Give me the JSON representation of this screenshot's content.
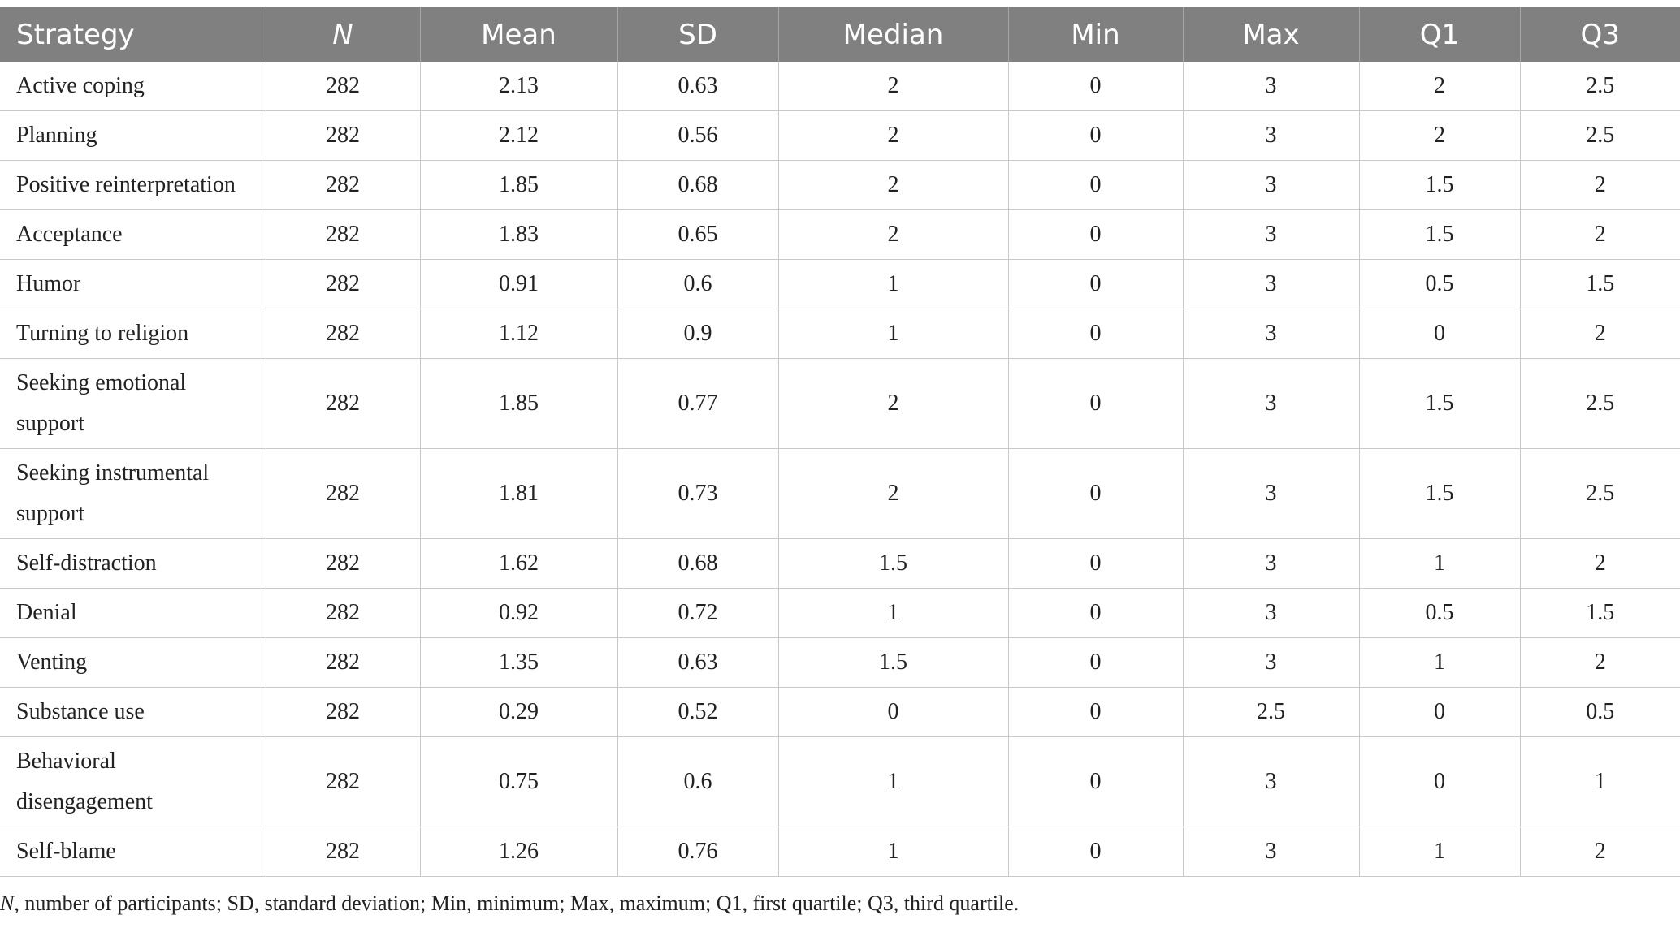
{
  "table": {
    "headers": [
      "Strategy",
      "N",
      "Mean",
      "SD",
      "Median",
      "Min",
      "Max",
      "Q1",
      "Q3"
    ],
    "rows": [
      [
        "Active coping",
        "282",
        "2.13",
        "0.63",
        "2",
        "0",
        "3",
        "2",
        "2.5"
      ],
      [
        "Planning",
        "282",
        "2.12",
        "0.56",
        "2",
        "0",
        "3",
        "2",
        "2.5"
      ],
      [
        "Positive reinterpretation",
        "282",
        "1.85",
        "0.68",
        "2",
        "0",
        "3",
        "1.5",
        "2"
      ],
      [
        "Acceptance",
        "282",
        "1.83",
        "0.65",
        "2",
        "0",
        "3",
        "1.5",
        "2"
      ],
      [
        "Humor",
        "282",
        "0.91",
        "0.6",
        "1",
        "0",
        "3",
        "0.5",
        "1.5"
      ],
      [
        "Turning to religion",
        "282",
        "1.12",
        "0.9",
        "1",
        "0",
        "3",
        "0",
        "2"
      ],
      [
        "Seeking emotional support",
        "282",
        "1.85",
        "0.77",
        "2",
        "0",
        "3",
        "1.5",
        "2.5"
      ],
      [
        "Seeking instrumental support",
        "282",
        "1.81",
        "0.73",
        "2",
        "0",
        "3",
        "1.5",
        "2.5"
      ],
      [
        "Self-distraction",
        "282",
        "1.62",
        "0.68",
        "1.5",
        "0",
        "3",
        "1",
        "2"
      ],
      [
        "Denial",
        "282",
        "0.92",
        "0.72",
        "1",
        "0",
        "3",
        "0.5",
        "1.5"
      ],
      [
        "Venting",
        "282",
        "1.35",
        "0.63",
        "1.5",
        "0",
        "3",
        "1",
        "2"
      ],
      [
        "Substance use",
        "282",
        "0.29",
        "0.52",
        "0",
        "0",
        "2.5",
        "0",
        "0.5"
      ],
      [
        "Behavioral disengagement",
        "282",
        "0.75",
        "0.6",
        "1",
        "0",
        "3",
        "0",
        "1"
      ],
      [
        "Self-blame",
        "282",
        "1.26",
        "0.76",
        "1",
        "0",
        "3",
        "1",
        "2"
      ]
    ]
  },
  "footnote": {
    "n_symbol": "N",
    "text": ", number of participants; SD, standard deviation; Min, minimum; Max, maximum; Q1, first quartile; Q3, third quartile."
  },
  "colors": {
    "header_bg": "#808080",
    "header_text": "#ffffff",
    "grid": "#c8c8c8"
  }
}
